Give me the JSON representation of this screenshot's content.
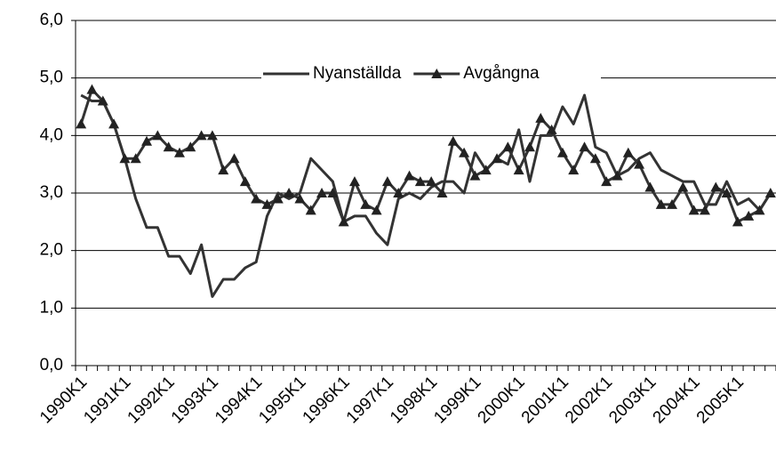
{
  "chart_data": {
    "type": "line",
    "categories": [
      "1990K1",
      null,
      null,
      null,
      "1991K1",
      null,
      null,
      null,
      "1992K1",
      null,
      null,
      null,
      "1993K1",
      null,
      null,
      null,
      "1994K1",
      null,
      null,
      null,
      "1995K1",
      null,
      null,
      null,
      "1996K1",
      null,
      null,
      null,
      "1997K1",
      null,
      null,
      null,
      "1998K1",
      null,
      null,
      null,
      "1999K1",
      null,
      null,
      null,
      "2000K1",
      null,
      null,
      null,
      "2001K1",
      null,
      null,
      null,
      "2002K1",
      null,
      null,
      null,
      "2003K1",
      null,
      null,
      null,
      "2004K1",
      null,
      null,
      null,
      "2005K1",
      null,
      null,
      null
    ],
    "series": [
      {
        "name": "Nyanställda",
        "color": "#333333",
        "marker": "none",
        "values": [
          4.7,
          4.6,
          4.6,
          4.2,
          3.6,
          2.9,
          2.4,
          2.4,
          1.9,
          1.9,
          1.6,
          2.1,
          1.2,
          1.5,
          1.5,
          1.7,
          1.8,
          2.6,
          3.0,
          2.9,
          3.0,
          3.6,
          3.4,
          3.2,
          2.5,
          2.6,
          2.6,
          2.3,
          2.1,
          2.9,
          3.0,
          2.9,
          3.1,
          3.2,
          3.2,
          3.0,
          3.7,
          3.4,
          3.6,
          3.5,
          4.1,
          3.2,
          4.0,
          4.0,
          4.5,
          4.2,
          4.7,
          3.8,
          3.7,
          3.3,
          3.4,
          3.6,
          3.7,
          3.4,
          3.3,
          3.2,
          3.2,
          2.8,
          2.8,
          3.2,
          2.8,
          2.9,
          2.7,
          3.0
        ]
      },
      {
        "name": "Avgångna",
        "color": "#333333",
        "marker": "triangle",
        "values": [
          4.2,
          4.8,
          4.6,
          4.2,
          3.6,
          3.6,
          3.9,
          4.0,
          3.8,
          3.7,
          3.8,
          4.0,
          4.0,
          3.4,
          3.6,
          3.2,
          2.9,
          2.8,
          2.9,
          3.0,
          2.9,
          2.7,
          3.0,
          3.0,
          2.5,
          3.2,
          2.8,
          2.7,
          3.2,
          3.0,
          3.3,
          3.2,
          3.2,
          3.0,
          3.9,
          3.7,
          3.3,
          3.4,
          3.6,
          3.8,
          3.4,
          3.8,
          4.3,
          4.1,
          3.7,
          3.4,
          3.8,
          3.6,
          3.2,
          3.3,
          3.7,
          3.5,
          3.1,
          2.8,
          2.8,
          3.1,
          2.7,
          2.7,
          3.1,
          3.0,
          2.5,
          2.6,
          2.7,
          3.0
        ]
      }
    ],
    "ylim": [
      0,
      6
    ],
    "yticks": [
      {
        "value": 0,
        "label": "0,0"
      },
      {
        "value": 1,
        "label": "1,0"
      },
      {
        "value": 2,
        "label": "2,0"
      },
      {
        "value": 3,
        "label": "3,0"
      },
      {
        "value": 4,
        "label": "4,0"
      },
      {
        "value": 5,
        "label": "5,0"
      },
      {
        "value": 6,
        "label": "6,0"
      }
    ],
    "grid": true,
    "legend": "top"
  }
}
